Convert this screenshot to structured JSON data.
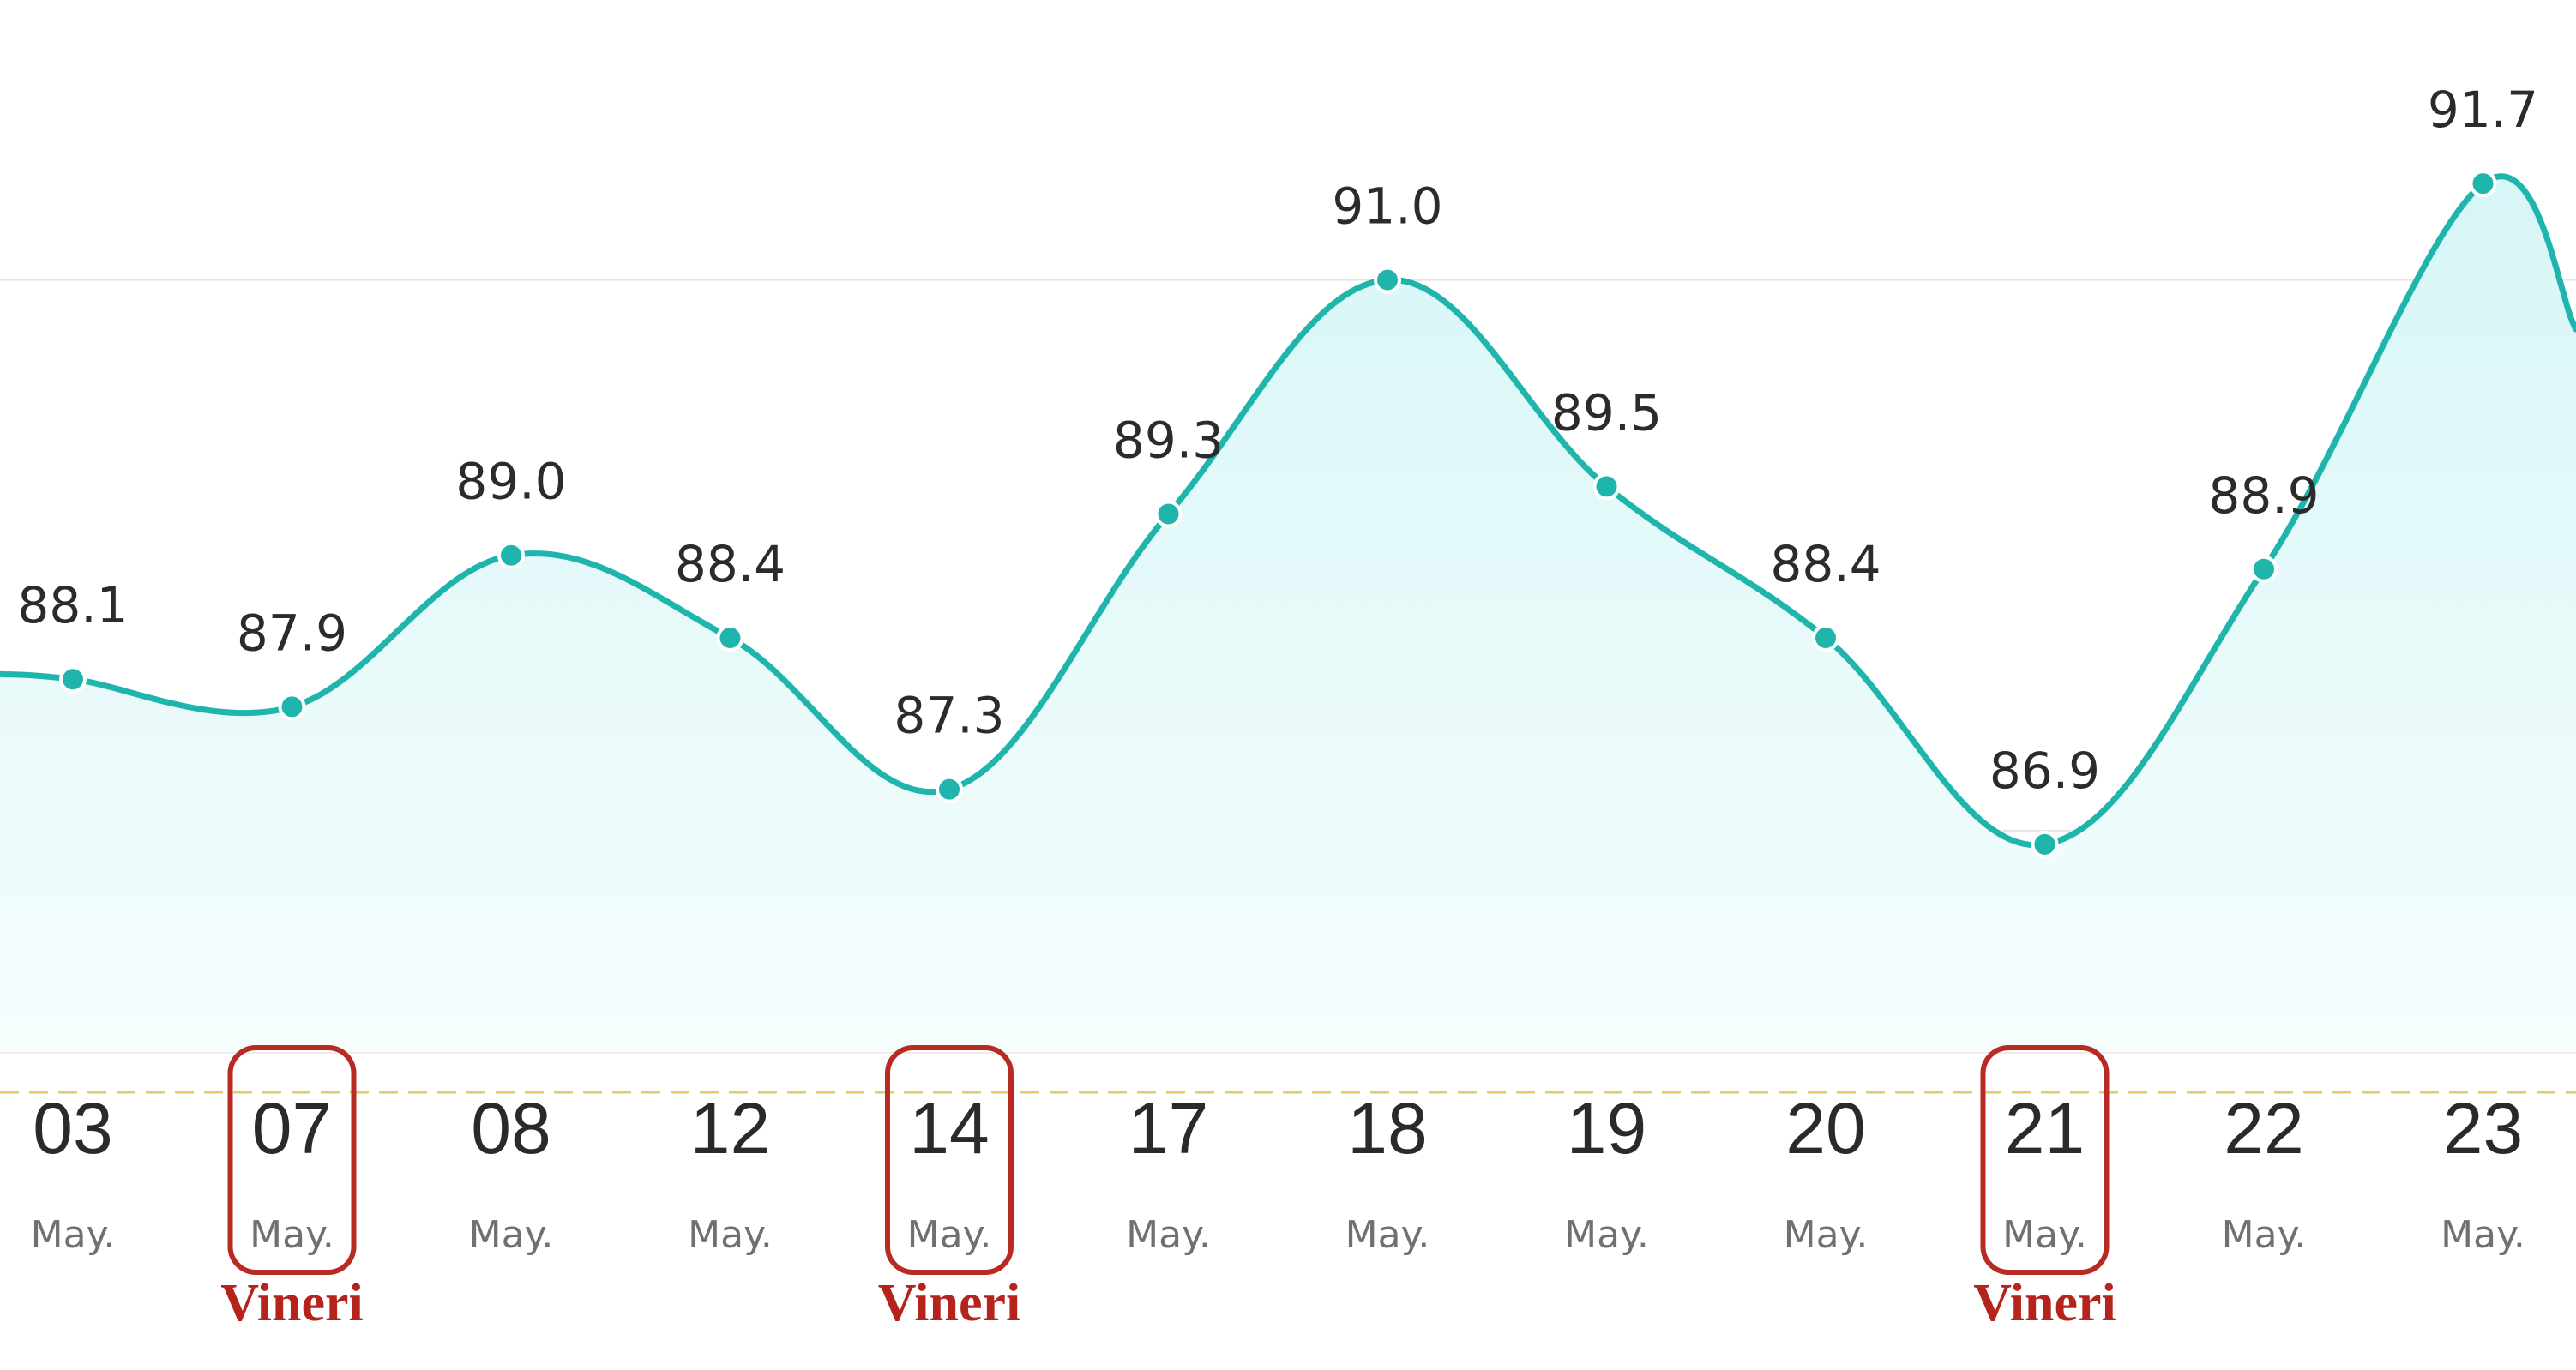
{
  "chart_data": {
    "type": "area",
    "series": [
      {
        "values": [
          88.1,
          87.9,
          89.0,
          88.4,
          87.3,
          89.3,
          91.0,
          89.5,
          88.4,
          86.9,
          88.9,
          91.7
        ]
      }
    ],
    "categories": [
      {
        "day": "03",
        "month": "May."
      },
      {
        "day": "07",
        "month": "May."
      },
      {
        "day": "08",
        "month": "May."
      },
      {
        "day": "12",
        "month": "May."
      },
      {
        "day": "14",
        "month": "May."
      },
      {
        "day": "17",
        "month": "May."
      },
      {
        "day": "18",
        "month": "May."
      },
      {
        "day": "19",
        "month": "May."
      },
      {
        "day": "20",
        "month": "May."
      },
      {
        "day": "21",
        "month": "May."
      },
      {
        "day": "22",
        "month": "May."
      },
      {
        "day": "23",
        "month": "May."
      }
    ],
    "highlighted_categories": [
      1,
      4,
      9
    ],
    "highlight_note": "Vineri",
    "ylim": [
      85.0,
      92.0
    ],
    "reference_line": 85.0,
    "grid": true,
    "colors": {
      "line": "#1fb5ad",
      "area_top": "#d7f6f7",
      "area_bottom": "#f6fdfd",
      "reference_line": "#e2c96a",
      "gridline": "#e4e4e4",
      "highlight_box": "#b82a22"
    }
  }
}
